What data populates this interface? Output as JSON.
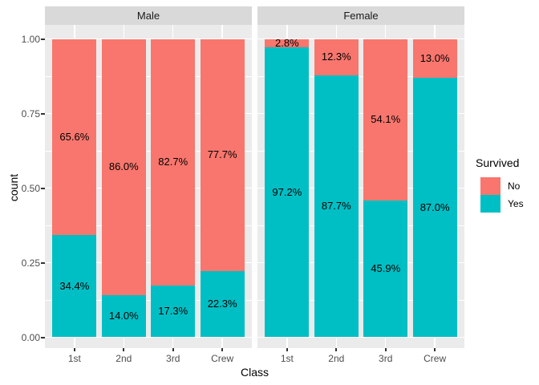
{
  "chart_data": {
    "type": "bar",
    "stacked": true,
    "normalized": true,
    "title": "",
    "xlabel": "Class",
    "ylabel": "count",
    "grid": true,
    "facets": [
      {
        "label": "Male",
        "categories": [
          "1st",
          "2nd",
          "3rd",
          "Crew"
        ],
        "series": [
          {
            "name": "No",
            "values": [
              65.6,
              86.0,
              82.7,
              77.7
            ],
            "labels": [
              "65.6%",
              "86.0%",
              "82.7%",
              "77.7%"
            ]
          },
          {
            "name": "Yes",
            "values": [
              34.4,
              14.0,
              17.3,
              22.3
            ],
            "labels": [
              "34.4%",
              "14.0%",
              "17.3%",
              "22.3%"
            ]
          }
        ]
      },
      {
        "label": "Female",
        "categories": [
          "1st",
          "2nd",
          "3rd",
          "Crew"
        ],
        "series": [
          {
            "name": "No",
            "values": [
              2.8,
              12.3,
              54.1,
              13.0
            ],
            "labels": [
              "2.8%",
              "12.3%",
              "54.1%",
              "13.0%"
            ]
          },
          {
            "name": "Yes",
            "values": [
              97.2,
              87.7,
              45.9,
              87.0
            ],
            "labels": [
              "97.2%",
              "87.7%",
              "45.9%",
              "87.0%"
            ]
          }
        ]
      }
    ],
    "y_axis": {
      "range": [
        0,
        1
      ],
      "ticks": [
        {
          "label": "0.00",
          "value": 0
        },
        {
          "label": "0.25",
          "value": 0.25
        },
        {
          "label": "0.50",
          "value": 0.5
        },
        {
          "label": "0.75",
          "value": 0.75
        },
        {
          "label": "1.00",
          "value": 1
        }
      ],
      "minor_gridlines": [
        0.125,
        0.375,
        0.625,
        0.875
      ]
    },
    "legend": {
      "title": "Survived",
      "position": "right",
      "entries": [
        {
          "label": "No",
          "color": "#F8766D"
        },
        {
          "label": "Yes",
          "color": "#00BFC4"
        }
      ]
    },
    "colors": {
      "No": "#F8766D",
      "Yes": "#00BFC4",
      "panel_background": "#EBEBEB",
      "strip_background": "#D9D9D9",
      "gridline": "#FFFFFF",
      "tick_text": "#4D4D4D",
      "tick_mark": "#333333",
      "label_text": "#000000"
    }
  }
}
